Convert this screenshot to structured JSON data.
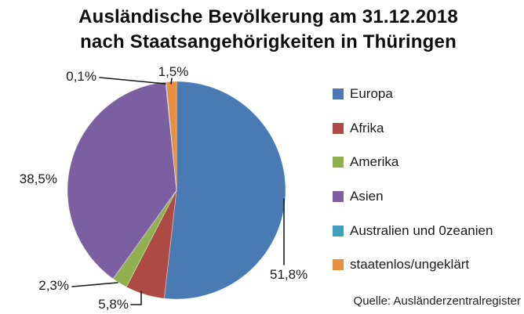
{
  "title": {
    "line1": "Ausländische Bevölkerung am 31.12.2018",
    "line2": "nach Staatsangehörigkeiten in Thüringen"
  },
  "source": "Quelle: Ausländerzentralregister",
  "chart_data": {
    "type": "pie",
    "title": "Ausländische Bevölkerung am 31.12.2018 nach Staatsangehörigkeiten in Thüringen",
    "categories": [
      "Europa",
      "Afrika",
      "Amerika",
      "Asien",
      "Australien und 0zeanien",
      "staatenlos/ungeklärt"
    ],
    "values": [
      51.8,
      5.8,
      2.3,
      38.5,
      0.1,
      1.5
    ],
    "value_labels": [
      "51,8%",
      "5,8%",
      "2,3%",
      "38,5%",
      "0,1%",
      "1,5%"
    ],
    "colors": [
      "#4a7ab3",
      "#ae4a44",
      "#92af50",
      "#7b5fa0",
      "#3fa0bc",
      "#e78f3d"
    ],
    "unit": "%",
    "start_angle_deg": 0,
    "direction": "clockwise",
    "legend_position": "right",
    "source": "Quelle: Ausländerzentralregister"
  }
}
